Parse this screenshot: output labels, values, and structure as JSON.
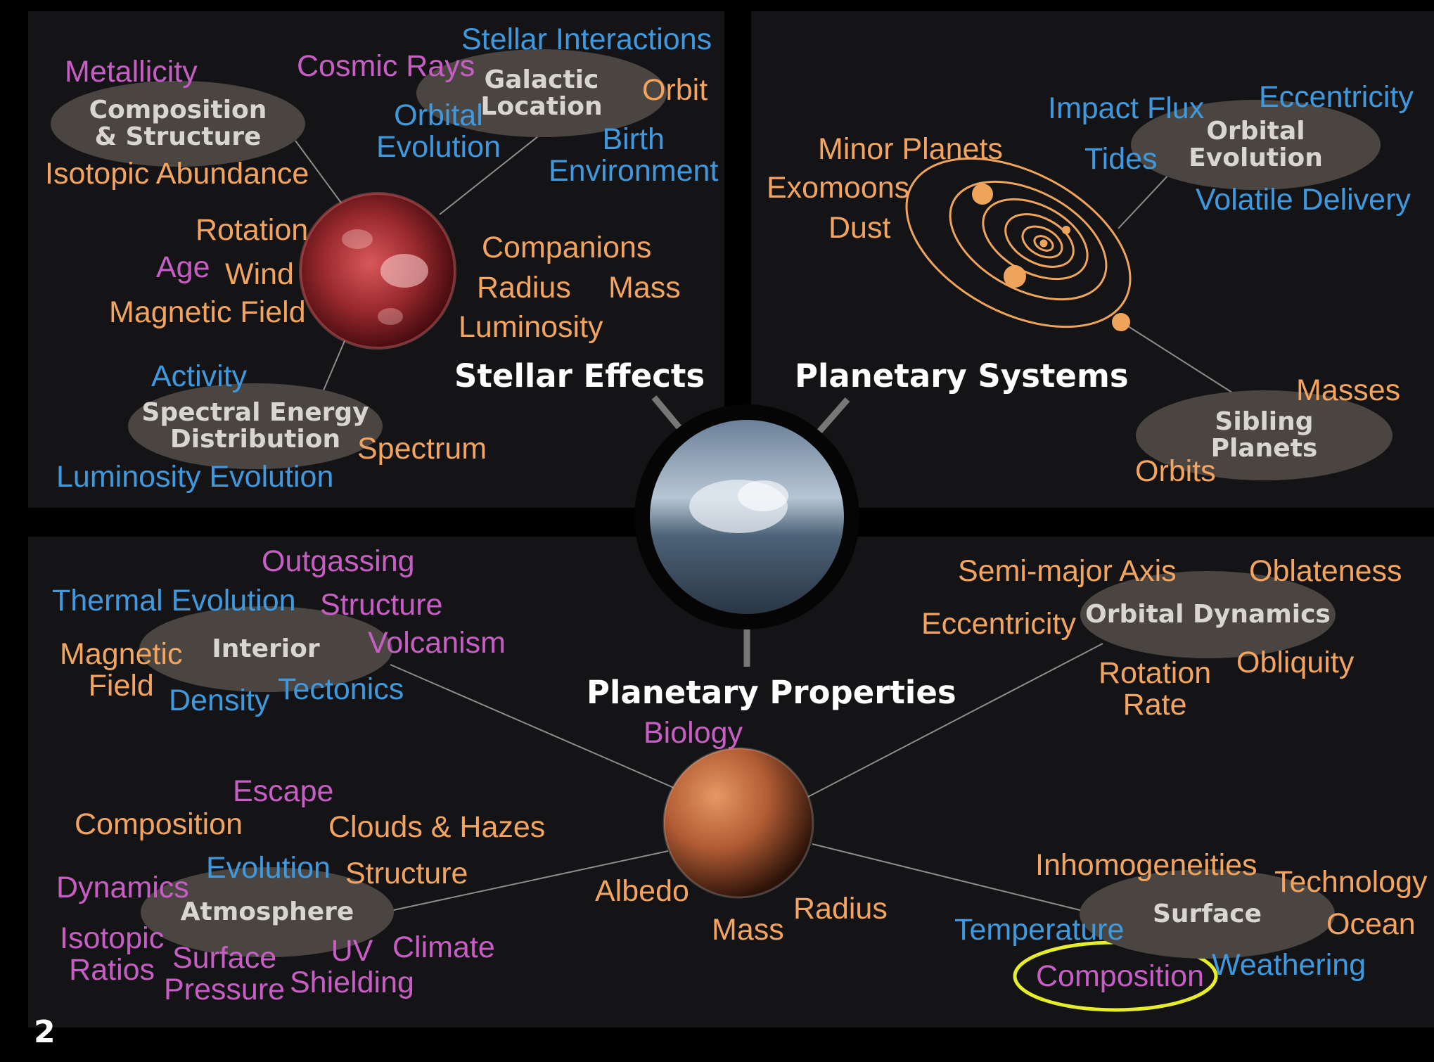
{
  "stellar": {
    "title": "Stellar Effects",
    "hub_composition": [
      "Composition",
      "& Structure"
    ],
    "hub_galactic": [
      "Galactic",
      "Location"
    ],
    "hub_sed": [
      "Spectral Energy",
      "Distribution"
    ],
    "metallicity": "Metallicity",
    "cosmic_rays": "Cosmic Rays",
    "stellar_interactions": "Stellar Interactions",
    "orbit": "Orbit",
    "orbital_evolution": [
      "Orbital",
      "Evolution"
    ],
    "birth_environment": [
      "Birth",
      "Environment"
    ],
    "isotopic_abundance": "Isotopic Abundance",
    "rotation": "Rotation",
    "age": "Age",
    "wind": "Wind",
    "magnetic_field": "Magnetic Field",
    "companions": "Companions",
    "radius": "Radius",
    "mass": "Mass",
    "luminosity": "Luminosity",
    "activity": "Activity",
    "spectrum": "Spectrum",
    "luminosity_evolution": "Luminosity Evolution"
  },
  "systems": {
    "title": "Planetary Systems",
    "hub_orbital": [
      "Orbital",
      "Evolution"
    ],
    "hub_sibling": [
      "Sibling",
      "Planets"
    ],
    "impact_flux": "Impact Flux",
    "eccentricity": "Eccentricity",
    "tides": "Tides",
    "minor_planets": "Minor Planets",
    "exomoons": "Exomoons",
    "dust": "Dust",
    "volatile_delivery": "Volatile Delivery",
    "masses": "Masses",
    "orbits": "Orbits"
  },
  "properties": {
    "title": "Planetary Properties",
    "biology": "Biology",
    "hub_interior": "Interior",
    "hub_orbital_dynamics": "Orbital Dynamics",
    "hub_atmosphere": "Atmosphere",
    "hub_surface": "Surface",
    "outgassing": "Outgassing",
    "thermal_evolution": "Thermal Evolution",
    "structure_interior": "Structure",
    "volcanism": "Volcanism",
    "magnetic_field": [
      "Magnetic",
      "Field"
    ],
    "density": "Density",
    "tectonics": "Tectonics",
    "semi_major_axis": "Semi-major Axis",
    "oblateness": "Oblateness",
    "eccentricity": "Eccentricity",
    "rotation_rate": [
      "Rotation",
      "Rate"
    ],
    "obliquity": "Obliquity",
    "escape": "Escape",
    "composition_atm": "Composition",
    "clouds_hazes": "Clouds & Hazes",
    "evolution": "Evolution",
    "structure_atm": "Structure",
    "dynamics": "Dynamics",
    "isotopic_ratios": [
      "Isotopic",
      "Ratios"
    ],
    "surface_pressure": [
      "Surface",
      "Pressure"
    ],
    "uv_shielding": [
      "UV",
      "Shielding"
    ],
    "climate": "Climate",
    "albedo": "Albedo",
    "mass": "Mass",
    "radius": "Radius",
    "inhomogeneities": "Inhomogeneities",
    "technology": "Technology",
    "temperature": "Temperature",
    "ocean": "Ocean",
    "composition_surface": "Composition",
    "weathering": "Weathering"
  },
  "colors": {
    "orange": "#f3a45e",
    "blue": "#3e99df",
    "purple": "#c85ec5",
    "highlight": "#e6ee2a"
  },
  "page_number": "2"
}
